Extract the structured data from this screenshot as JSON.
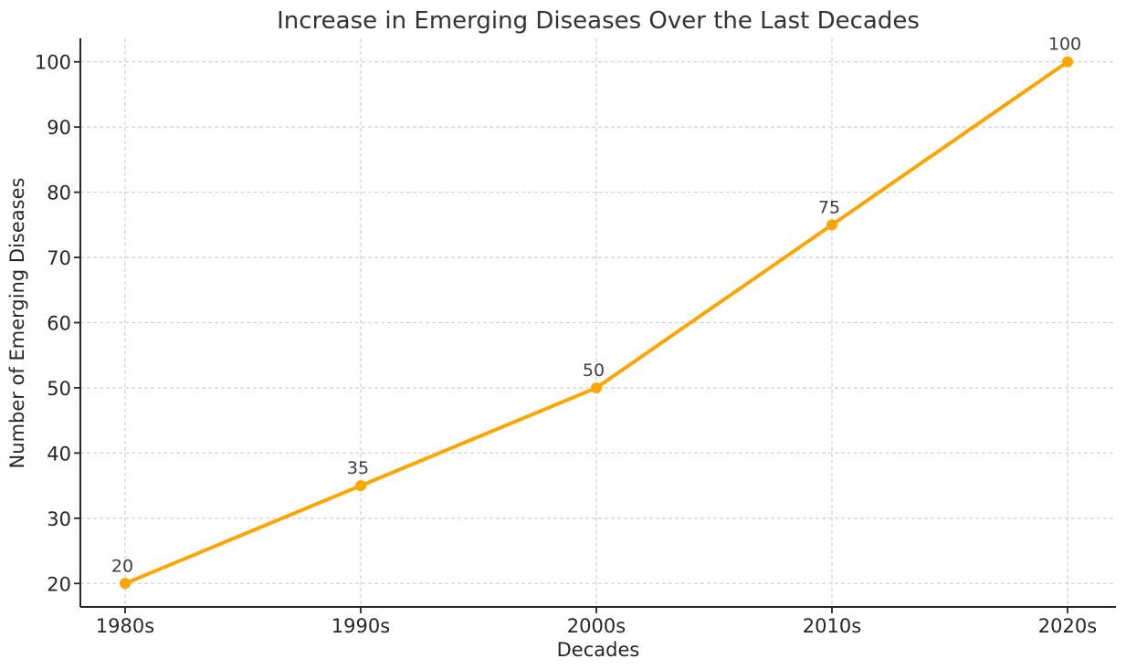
{
  "chart_data": {
    "type": "line",
    "title": "Increase in Emerging Diseases Over the Last Decades",
    "xlabel": "Decades",
    "ylabel": "Number of Emerging Diseases",
    "categories": [
      "1980s",
      "1990s",
      "2000s",
      "2010s",
      "2020s"
    ],
    "values": [
      20,
      35,
      50,
      75,
      100
    ],
    "point_labels": [
      "20",
      "35",
      "50",
      "75",
      "100"
    ],
    "yticks": [
      20,
      30,
      40,
      50,
      60,
      70,
      80,
      90,
      100
    ],
    "ylim": [
      16.4,
      103.6
    ],
    "grid": true,
    "grid_linestyle": "dashed",
    "legend": false,
    "marker": "circle",
    "colors": {
      "line": "#FFA500",
      "marker": "#FFA500",
      "grid": "#d4d4d4",
      "axis": "#262626",
      "tick_label": "#262626",
      "axis_label": "#262626",
      "title": "#333333",
      "annotation": "#3d3d3d",
      "background": "#ffffff"
    }
  }
}
